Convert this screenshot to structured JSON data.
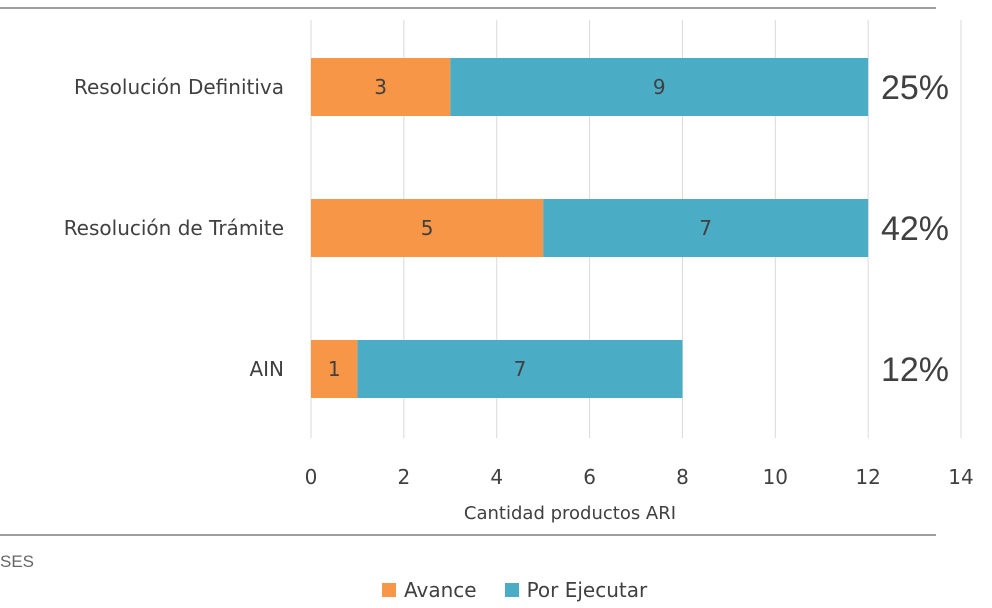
{
  "colors": {
    "avance": "#F79646",
    "por_ejecutar": "#4BACC6",
    "grid": "#D9D9D9",
    "rule": "#7F7F7F"
  },
  "source_text": "SES",
  "chart_data": {
    "type": "bar",
    "orientation": "horizontal",
    "stacked": true,
    "categories": [
      "Resolución Definitiva",
      "Resolución de Trámite",
      "AIN"
    ],
    "series": [
      {
        "name": "Avance",
        "values": [
          3,
          5,
          1
        ]
      },
      {
        "name": "Por Ejecutar",
        "values": [
          9,
          7,
          7
        ]
      }
    ],
    "percent_labels": [
      "25%",
      "42%",
      "12%"
    ],
    "xlabel": "Cantidad productos ARI",
    "ylabel": "",
    "xlim": [
      0,
      14
    ],
    "xticks": [
      0,
      2,
      4,
      6,
      8,
      10,
      12,
      14
    ],
    "grid": true,
    "legend_position": "bottom"
  }
}
